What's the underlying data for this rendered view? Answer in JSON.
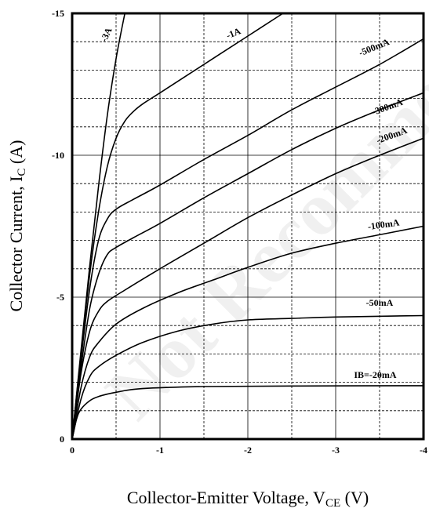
{
  "chart_data": {
    "type": "line",
    "title": "",
    "xlabel": "Collector-Emitter Voltage, V",
    "xlabel_sub": "CE",
    "xlabel_unit": " (V)",
    "ylabel": "Collector Current, I",
    "ylabel_sub": "C",
    "ylabel_unit": " (A)",
    "xlim": [
      0,
      -4
    ],
    "ylim": [
      0,
      -15
    ],
    "x_ticks": [
      0,
      -1,
      -2,
      -3,
      -4
    ],
    "x_tick_labels": [
      "0",
      "-1",
      "-2",
      "-3",
      "-4"
    ],
    "y_ticks": [
      0,
      -5,
      -10,
      -15
    ],
    "y_tick_labels": [
      "0",
      "-5",
      "-10",
      "-15"
    ],
    "grid": true,
    "watermark": "Not Recommended",
    "series": [
      {
        "name": "IB=-20mA",
        "label": "IB=-20mA",
        "x": [
          0,
          -0.05,
          -0.1,
          -0.2,
          -0.3,
          -0.5,
          -0.8,
          -1.5,
          -2.5,
          -4
        ],
        "y": [
          0,
          -0.7,
          -1.05,
          -1.35,
          -1.5,
          -1.65,
          -1.78,
          -1.85,
          -1.87,
          -1.88
        ]
      },
      {
        "name": "-50mA",
        "label": "-50mA",
        "x": [
          0,
          -0.1,
          -0.2,
          -0.3,
          -0.5,
          -0.8,
          -1.2,
          -1.6,
          -2,
          -2.5,
          -3,
          -4
        ],
        "y": [
          0,
          -1.4,
          -2.2,
          -2.55,
          -2.95,
          -3.4,
          -3.8,
          -4.05,
          -4.2,
          -4.25,
          -4.3,
          -4.35
        ]
      },
      {
        "name": "-100mA",
        "label": "-100mA",
        "x": [
          0,
          -0.1,
          -0.2,
          -0.3,
          -0.5,
          -0.8,
          -1.2,
          -1.6,
          -2,
          -2.5,
          -3,
          -3.5,
          -4
        ],
        "y": [
          0,
          -1.8,
          -2.9,
          -3.4,
          -4.05,
          -4.6,
          -5.15,
          -5.6,
          -6.05,
          -6.55,
          -6.9,
          -7.2,
          -7.5
        ]
      },
      {
        "name": "-200mA",
        "label": "-200mA",
        "x": [
          0,
          -0.1,
          -0.2,
          -0.3,
          -0.4,
          -0.6,
          -1,
          -1.5,
          -2,
          -2.5,
          -3,
          -3.5,
          -4
        ],
        "y": [
          0,
          -2.3,
          -3.8,
          -4.5,
          -4.85,
          -5.25,
          -6,
          -6.9,
          -7.8,
          -8.6,
          -9.35,
          -10,
          -10.6
        ]
      },
      {
        "name": "-300mA",
        "label": "-300mA",
        "x": [
          0,
          -0.1,
          -0.2,
          -0.3,
          -0.4,
          -0.5,
          -0.7,
          -1,
          -1.5,
          -2,
          -2.5,
          -3,
          -3.5,
          -4
        ],
        "y": [
          0,
          -2.5,
          -4.6,
          -5.8,
          -6.5,
          -6.75,
          -7.1,
          -7.6,
          -8.5,
          -9.35,
          -10.2,
          -10.95,
          -11.6,
          -12.2
        ]
      },
      {
        "name": "-500mA",
        "label": "-500mA",
        "x": [
          0,
          -0.1,
          -0.2,
          -0.3,
          -0.4,
          -0.5,
          -0.7,
          -1,
          -1.5,
          -2,
          -2.5,
          -3,
          -3.5,
          -4
        ],
        "y": [
          0,
          -2.8,
          -5.3,
          -7,
          -7.75,
          -8.1,
          -8.45,
          -8.95,
          -9.85,
          -10.7,
          -11.6,
          -12.4,
          -13.2,
          -14.1
        ]
      },
      {
        "name": "-1A",
        "label": "-1A",
        "x": [
          0,
          -0.1,
          -0.2,
          -0.3,
          -0.4,
          -0.5,
          -0.6,
          -0.7,
          -0.8,
          -1,
          -1.5,
          -2,
          -2.4
        ],
        "y": [
          0,
          -3,
          -5.8,
          -8,
          -9.6,
          -10.6,
          -11.2,
          -11.55,
          -11.8,
          -12.2,
          -13.2,
          -14.2,
          -15
        ]
      },
      {
        "name": "-3A",
        "label": "-3A",
        "x": [
          0,
          -0.1,
          -0.2,
          -0.3,
          -0.4,
          -0.5,
          -0.6
        ],
        "y": [
          0,
          -3.1,
          -6.1,
          -8.9,
          -11.4,
          -13.4,
          -15
        ]
      }
    ],
    "label_positions": [
      {
        "text": "IB=-20mA",
        "x": -3.45,
        "y": -2.15,
        "rotate": 0
      },
      {
        "text": "-50mA",
        "x": -3.5,
        "y": -4.7,
        "rotate": 0
      },
      {
        "text": "-100mA",
        "x": -3.55,
        "y": -7.45,
        "rotate": -8
      },
      {
        "text": "-200mA",
        "x": -3.65,
        "y": -10.6,
        "rotate": -20
      },
      {
        "text": "-300mA",
        "x": -3.6,
        "y": -11.6,
        "rotate": -20
      },
      {
        "text": "-500mA",
        "x": -3.45,
        "y": -13.7,
        "rotate": -22
      },
      {
        "text": "-1A",
        "x": -1.85,
        "y": -14.2,
        "rotate": -22
      },
      {
        "text": "-3A",
        "x": -0.42,
        "y": -14.2,
        "rotate": -65
      }
    ]
  }
}
